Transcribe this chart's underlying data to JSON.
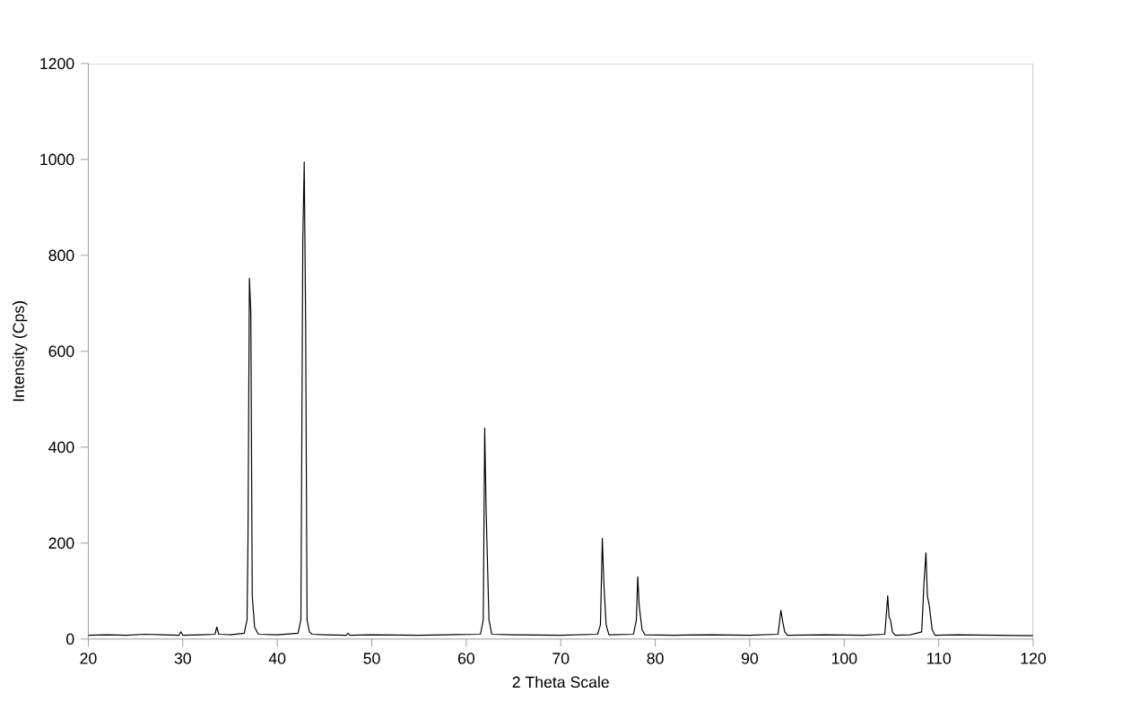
{
  "chart_data": {
    "type": "line",
    "xlabel": "2 Theta Scale",
    "ylabel": "Intensity (Cps)",
    "xlim": [
      20,
      120
    ],
    "ylim": [
      0,
      1200
    ],
    "xticks": [
      20,
      30,
      40,
      50,
      60,
      70,
      80,
      90,
      100,
      110,
      120
    ],
    "yticks": [
      0,
      200,
      400,
      600,
      800,
      1000,
      1200
    ],
    "grid": false,
    "marker": "none",
    "line_style": "solid",
    "series": [
      {
        "color": "#000000",
        "x": [
          20,
          22,
          24,
          26,
          28,
          29.6,
          29.8,
          30.0,
          32,
          33.4,
          33.6,
          33.8,
          35,
          36.5,
          36.8,
          36.9,
          37.05,
          37.2,
          37.35,
          37.6,
          38,
          40,
          42.2,
          42.5,
          42.7,
          42.85,
          43.0,
          43.15,
          43.4,
          43.7,
          45,
          47.3,
          47.5,
          47.7,
          50,
          55,
          58,
          61.5,
          61.8,
          61.95,
          62.1,
          62.4,
          62.7,
          65,
          70,
          73.9,
          74.2,
          74.4,
          74.55,
          74.8,
          75.1,
          77.7,
          78.0,
          78.15,
          78.3,
          78.6,
          78.9,
          82,
          86,
          90,
          93.0,
          93.3,
          93.5,
          93.7,
          94.0,
          98,
          102,
          104.3,
          104.6,
          104.75,
          104.9,
          105.1,
          105.4,
          107,
          108.2,
          108.45,
          108.65,
          108.8,
          109.0,
          109.3,
          109.6,
          112,
          116,
          120
        ],
        "values": [
          8,
          9,
          8,
          10,
          9,
          8,
          15,
          8,
          9,
          10,
          25,
          10,
          9,
          12,
          40,
          210,
          752,
          680,
          90,
          25,
          10,
          9,
          12,
          40,
          830,
          995,
          660,
          40,
          15,
          10,
          9,
          8,
          12,
          8,
          9,
          8,
          9,
          10,
          40,
          440,
          270,
          40,
          10,
          9,
          8,
          10,
          30,
          210,
          120,
          30,
          9,
          10,
          40,
          130,
          70,
          20,
          9,
          8,
          9,
          8,
          10,
          60,
          35,
          15,
          8,
          9,
          8,
          10,
          90,
          45,
          40,
          15,
          8,
          9,
          15,
          120,
          180,
          90,
          70,
          20,
          8,
          9,
          8,
          7
        ]
      }
    ]
  }
}
